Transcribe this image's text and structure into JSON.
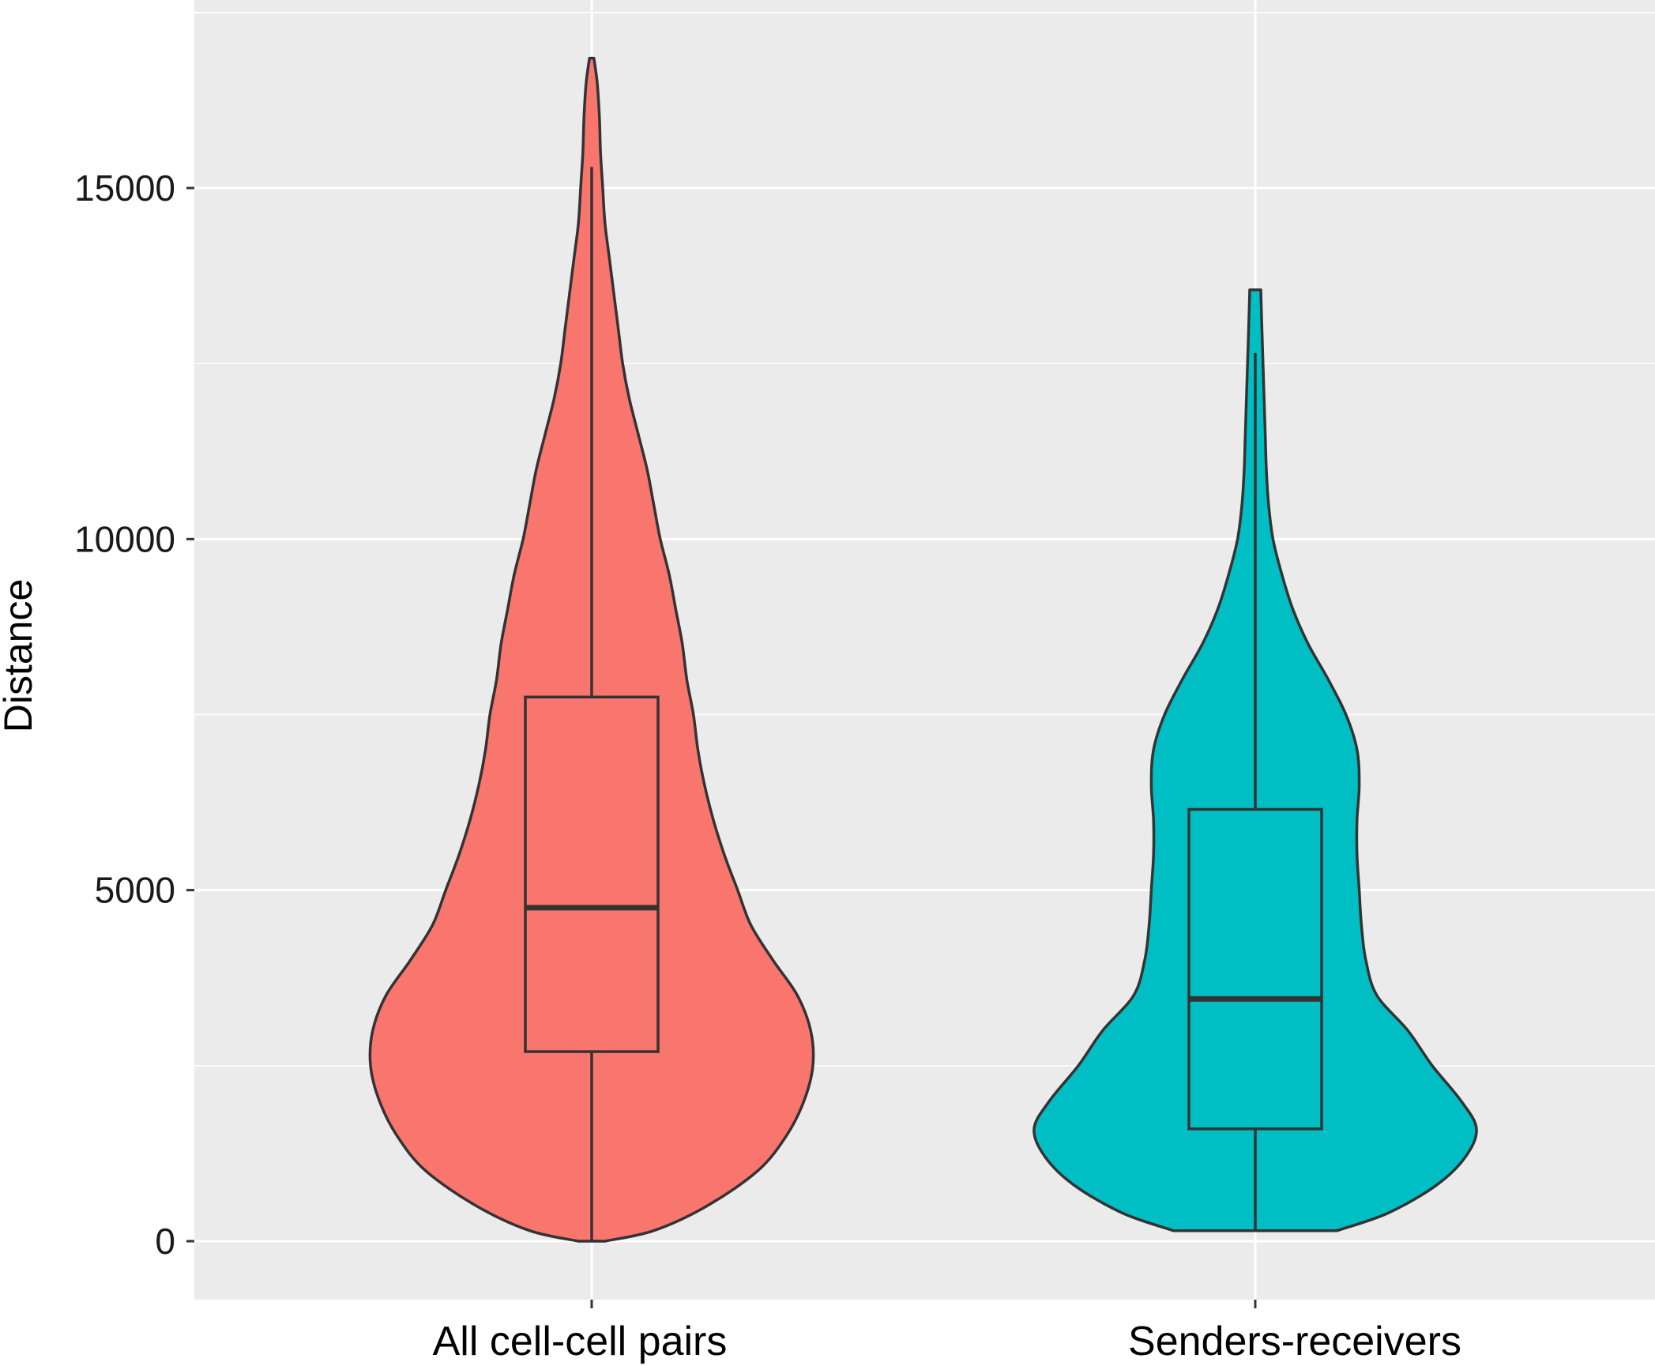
{
  "chart_data": {
    "type": "violin",
    "title": "",
    "xlabel": "",
    "ylabel": "Distance",
    "ylim": [
      -850,
      17500
    ],
    "yticks": [
      0,
      5000,
      10000,
      15000
    ],
    "ytick_labels": [
      "0",
      "5000",
      "10000",
      "15000"
    ],
    "grid": true,
    "legend": "none",
    "categories": [
      "All cell-cell pairs",
      "Senders-receivers"
    ],
    "series": [
      {
        "category": "All cell-cell pairs",
        "color": "#F8766D",
        "box": {
          "whisker_low": 0,
          "q1": 2700,
          "median": 4750,
          "q3": 7750,
          "whisker_high": 15300
        },
        "violin_min": 0,
        "violin_max": 16850,
        "density_profile": [
          [
            0,
            0.06
          ],
          [
            150,
            0.28
          ],
          [
            500,
            0.52
          ],
          [
            1000,
            0.75
          ],
          [
            1500,
            0.88
          ],
          [
            2000,
            0.96
          ],
          [
            2500,
            1.0
          ],
          [
            3000,
            0.99
          ],
          [
            3500,
            0.93
          ],
          [
            4000,
            0.82
          ],
          [
            4500,
            0.72
          ],
          [
            5000,
            0.66
          ],
          [
            5500,
            0.6
          ],
          [
            6000,
            0.55
          ],
          [
            6500,
            0.51
          ],
          [
            7000,
            0.48
          ],
          [
            7500,
            0.46
          ],
          [
            8000,
            0.43
          ],
          [
            8500,
            0.41
          ],
          [
            9000,
            0.38
          ],
          [
            9500,
            0.35
          ],
          [
            10000,
            0.31
          ],
          [
            10500,
            0.28
          ],
          [
            11000,
            0.25
          ],
          [
            11500,
            0.21
          ],
          [
            12000,
            0.17
          ],
          [
            12500,
            0.14
          ],
          [
            13000,
            0.12
          ],
          [
            13500,
            0.1
          ],
          [
            14000,
            0.08
          ],
          [
            14500,
            0.06
          ],
          [
            15000,
            0.05
          ],
          [
            15500,
            0.04
          ],
          [
            16000,
            0.035
          ],
          [
            16500,
            0.025
          ],
          [
            16850,
            0.01
          ]
        ]
      },
      {
        "category": "Senders-receivers",
        "color": "#00BFC4",
        "box": {
          "whisker_low": 150,
          "q1": 1600,
          "median": 3450,
          "q3": 6150,
          "whisker_high": 12650
        },
        "violin_min": 150,
        "violin_max": 13550,
        "density_profile": [
          [
            150,
            0.37
          ],
          [
            400,
            0.6
          ],
          [
            800,
            0.82
          ],
          [
            1200,
            0.95
          ],
          [
            1600,
            1.0
          ],
          [
            2000,
            0.93
          ],
          [
            2500,
            0.8
          ],
          [
            3000,
            0.69
          ],
          [
            3500,
            0.55
          ],
          [
            4000,
            0.5
          ],
          [
            4500,
            0.48
          ],
          [
            5000,
            0.47
          ],
          [
            5500,
            0.46
          ],
          [
            6000,
            0.46
          ],
          [
            6500,
            0.47
          ],
          [
            7000,
            0.46
          ],
          [
            7500,
            0.41
          ],
          [
            8000,
            0.33
          ],
          [
            8500,
            0.24
          ],
          [
            9000,
            0.17
          ],
          [
            9500,
            0.12
          ],
          [
            10000,
            0.08
          ],
          [
            10500,
            0.06
          ],
          [
            11000,
            0.05
          ],
          [
            11500,
            0.045
          ],
          [
            12000,
            0.04
          ],
          [
            12500,
            0.035
          ],
          [
            13000,
            0.03
          ],
          [
            13550,
            0.025
          ]
        ]
      }
    ]
  }
}
